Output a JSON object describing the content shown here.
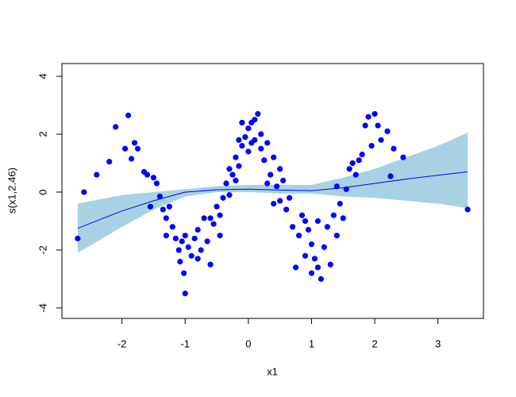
{
  "chart_data": {
    "type": "scatter",
    "xlabel": "x1",
    "ylabel": "s(x1,2.46)",
    "xlim": [
      -2.95,
      3.72
    ],
    "ylim": [
      -4.36,
      4.44
    ],
    "xticks": [
      -2,
      -1,
      0,
      1,
      2,
      3
    ],
    "yticks": [
      -4,
      -2,
      0,
      2,
      4
    ],
    "color": "#0000ff",
    "x": [
      -2.7,
      -2.6,
      -2.4,
      -2.2,
      -2.1,
      -1.9,
      -1.95,
      -1.85,
      -1.8,
      -1.75,
      -1.65,
      -1.6,
      -1.55,
      -1.5,
      -1.45,
      -1.4,
      -1.35,
      -1.3,
      -1.25,
      -1.2,
      -1.15,
      -1.1,
      -1.08,
      -1.05,
      -1.02,
      -1.0,
      -1.0,
      -0.95,
      -0.9,
      -0.85,
      -0.8,
      -0.75,
      -0.7,
      -0.65,
      -0.6,
      -0.55,
      -0.5,
      -0.45,
      -0.45,
      -0.4,
      -0.35,
      -0.3,
      -0.3,
      -0.25,
      -0.2,
      -0.15,
      -0.1,
      -0.1,
      -0.05,
      0,
      0,
      0.05,
      0.1,
      0.1,
      0.15,
      0.2,
      0.2,
      0.25,
      0.3,
      0.35,
      0.4,
      0.45,
      0.5,
      0.5,
      0.55,
      0.6,
      0.65,
      0.7,
      0.75,
      0.8,
      0.85,
      0.9,
      0.95,
      1.0,
      1.0,
      1.05,
      1.1,
      1.15,
      1.2,
      1.25,
      1.3,
      1.35,
      1.4,
      1.4,
      1.45,
      1.5,
      1.55,
      1.6,
      1.65,
      1.7,
      1.75,
      1.8,
      1.85,
      1.9,
      1.95,
      2.0,
      2.05,
      2.1,
      2.2,
      2.25,
      2.3,
      2.45,
      3.47,
      -0.6,
      -0.2,
      0.3,
      -0.15,
      0.05,
      0.4,
      -0.8,
      1.1,
      -1.3,
      0.9
    ],
    "y": [
      -1.6,
      0,
      0.6,
      1.05,
      2.25,
      2.65,
      1.5,
      1.15,
      1.7,
      1.5,
      0.7,
      0.6,
      -0.5,
      0.5,
      0.3,
      -0.15,
      -0.6,
      -0.9,
      -0.5,
      -1.2,
      -1.6,
      -2.0,
      -2.4,
      -1.7,
      -2.8,
      -3.5,
      -1.5,
      -1.9,
      -2.2,
      -1.6,
      -1.3,
      -2.0,
      -0.9,
      -1.7,
      -2.5,
      -1.1,
      -0.5,
      -0.8,
      -1.5,
      -0.2,
      0.3,
      -0.1,
      0.8,
      0.6,
      1.2,
      0.9,
      1.6,
      2.4,
      1.9,
      1.4,
      2.2,
      1.7,
      2.5,
      1.8,
      2.7,
      1.5,
      2.0,
      1.1,
      1.7,
      0.6,
      1.2,
      0.2,
      0.8,
      -0.3,
      0.4,
      -0.6,
      -0.2,
      -1.2,
      -2.6,
      -1.5,
      -0.8,
      -2.2,
      -1.3,
      -2.8,
      -1.8,
      -2.3,
      -1.0,
      -3.0,
      -1.9,
      -1.2,
      -2.5,
      -0.8,
      -1.5,
      0.2,
      -0.4,
      -0.9,
      0.1,
      0.8,
      1.0,
      0.6,
      1.1,
      1.3,
      2.3,
      2.6,
      1.6,
      2.7,
      2.3,
      1.8,
      2.1,
      0.55,
      1.5,
      1.2,
      -0.6,
      -0.9,
      0.4,
      0.3,
      1.8,
      2.4,
      -0.4,
      -2.3,
      -2.6,
      -1.5,
      -1.0
    ],
    "smooth": {
      "color": "#0000ff",
      "band_color": "#a6d2e3",
      "x": [
        -2.7,
        -2,
        -1.5,
        -1,
        -0.5,
        0,
        0.5,
        1,
        1.5,
        2,
        2.5,
        3,
        3.47
      ],
      "values": [
        -1.25,
        -0.65,
        -0.3,
        0,
        0.08,
        0.1,
        0.07,
        0.05,
        0.15,
        0.3,
        0.45,
        0.58,
        0.7
      ],
      "upper": [
        -0.4,
        -0.1,
        0,
        0.1,
        0.2,
        0.25,
        0.25,
        0.25,
        0.5,
        0.8,
        1.2,
        1.6,
        2.05
      ],
      "lower": [
        -2.1,
        -1.2,
        -0.6,
        -0.15,
        0,
        0,
        -0.05,
        -0.05,
        -0.15,
        -0.2,
        -0.3,
        -0.4,
        -0.55
      ]
    }
  }
}
